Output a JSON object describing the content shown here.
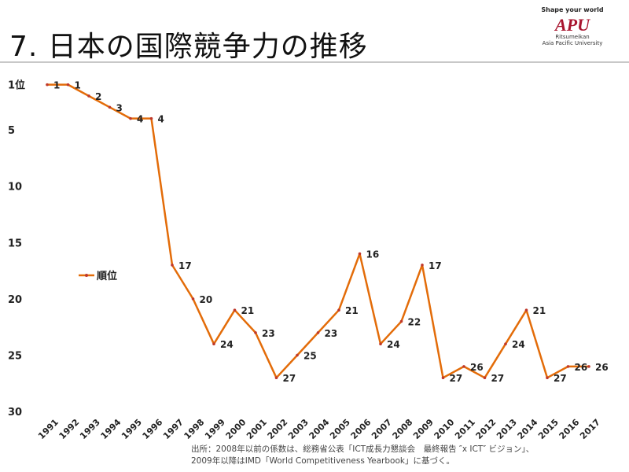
{
  "header": {
    "title": "7. 日本の国際競争力の推移",
    "logo": {
      "tagline": "Shape your world",
      "mark": "APU",
      "line1": "Ritsumeikan",
      "line2": "Asia Pacific University"
    }
  },
  "source": {
    "line1": "出所：2008年以前の係数は、総務省公表「ICT成長力懇談会　最終報告 ″x ICT″ ビジョン」、",
    "line2": "2009年以降はIMD「World Competitiveness Yearbook」に基づく。"
  },
  "chart_data": {
    "type": "line",
    "categories": [
      "1991",
      "1992",
      "1993",
      "1994",
      "1995",
      "1996",
      "1997",
      "1998",
      "1999",
      "2000",
      "2001",
      "2002",
      "2003",
      "2004",
      "2005",
      "2006",
      "2007",
      "2008",
      "2009",
      "2010",
      "2011",
      "2012",
      "2013",
      "2014",
      "2015",
      "2016",
      "2017"
    ],
    "series": [
      {
        "name": "順位",
        "color": "#e36c09",
        "values": [
          1,
          1,
          2,
          3,
          4,
          4,
          17,
          20,
          24,
          21,
          23,
          27,
          25,
          23,
          21,
          16,
          24,
          22,
          17,
          27,
          26,
          27,
          24,
          21,
          27,
          26,
          26
        ]
      }
    ],
    "ylim": [
      0,
      30
    ],
    "y_inverted": true,
    "yticks": [
      1,
      5,
      10,
      15,
      20,
      25,
      30
    ],
    "ytick_labels": [
      "1位",
      "5",
      "10",
      "15",
      "20",
      "25",
      "30"
    ],
    "legend_position": "left",
    "grid": false,
    "data_labels": true
  }
}
